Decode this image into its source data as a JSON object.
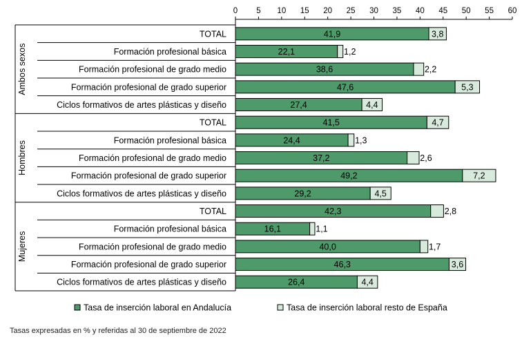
{
  "chart_data": {
    "type": "bar",
    "orientation": "horizontal",
    "stacked": true,
    "x_axis": {
      "position": "top",
      "min": 0,
      "max": 60,
      "ticks": [
        0,
        5,
        10,
        15,
        20,
        25,
        30,
        35,
        40,
        45,
        50,
        55,
        60
      ]
    },
    "groups": [
      {
        "name": "Ambos sexos",
        "rows": [
          {
            "label": "TOTAL",
            "andalucia": 41.9,
            "resto": 3.8,
            "andalucia_label": "41,9",
            "resto_label": "3,8"
          },
          {
            "label": "Formación profesional básica",
            "andalucia": 22.1,
            "resto": 1.2,
            "andalucia_label": "22,1",
            "resto_label": "1,2"
          },
          {
            "label": "Formación profesional de grado medio",
            "andalucia": 38.6,
            "resto": 2.2,
            "andalucia_label": "38,6",
            "resto_label": "2,2"
          },
          {
            "label": "Formación profesional de grado superior",
            "andalucia": 47.6,
            "resto": 5.3,
            "andalucia_label": "47,6",
            "resto_label": "5,3"
          },
          {
            "label": "Ciclos formativos de artes plásticas y diseño",
            "andalucia": 27.4,
            "resto": 4.4,
            "andalucia_label": "27,4",
            "resto_label": "4,4"
          }
        ]
      },
      {
        "name": "Hombres",
        "rows": [
          {
            "label": "TOTAL",
            "andalucia": 41.5,
            "resto": 4.7,
            "andalucia_label": "41,5",
            "resto_label": "4,7"
          },
          {
            "label": "Formación profesional básica",
            "andalucia": 24.4,
            "resto": 1.3,
            "andalucia_label": "24,4",
            "resto_label": "1,3"
          },
          {
            "label": "Formación profesional de grado medio",
            "andalucia": 37.2,
            "resto": 2.6,
            "andalucia_label": "37,2",
            "resto_label": "2,6"
          },
          {
            "label": "Formación profesional de grado superior",
            "andalucia": 49.2,
            "resto": 7.2,
            "andalucia_label": "49,2",
            "resto_label": "7,2"
          },
          {
            "label": "Ciclos formativos de artes plásticas y diseño",
            "andalucia": 29.2,
            "resto": 4.5,
            "andalucia_label": "29,2",
            "resto_label": "4,5"
          }
        ]
      },
      {
        "name": "Mujeres",
        "rows": [
          {
            "label": "TOTAL",
            "andalucia": 42.3,
            "resto": 2.8,
            "andalucia_label": "42,3",
            "resto_label": "2,8"
          },
          {
            "label": "Formación profesional básica",
            "andalucia": 16.1,
            "resto": 1.1,
            "andalucia_label": "16,1",
            "resto_label": "1,1"
          },
          {
            "label": "Formación profesional de grado medio",
            "andalucia": 40.0,
            "resto": 1.7,
            "andalucia_label": "40,0",
            "resto_label": "1,7"
          },
          {
            "label": "Formación profesional de grado superior",
            "andalucia": 46.3,
            "resto": 3.6,
            "andalucia_label": "46,3",
            "resto_label": "3,6"
          },
          {
            "label": "Ciclos formativos de artes plásticas y diseño",
            "andalucia": 26.4,
            "resto": 4.4,
            "andalucia_label": "26,4",
            "resto_label": "4,4"
          }
        ]
      }
    ],
    "series": [
      {
        "key": "andalucia",
        "name": "Tasa de inserción laboral en Andalucía",
        "color": "#4e9a6a"
      },
      {
        "key": "resto",
        "name": "Tasa de inserción laboral resto de España",
        "color": "#d8eadc"
      }
    ],
    "legend_position": "bottom",
    "grid": false,
    "footnote": "Tasas expresadas en % y referidas al 30 de septiembre de 2022"
  }
}
